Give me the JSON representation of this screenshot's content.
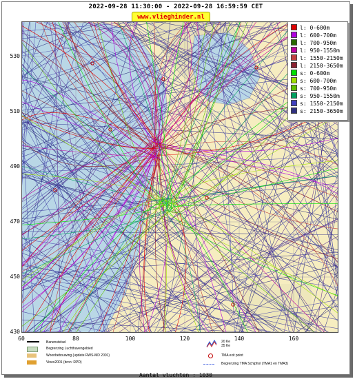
{
  "title": "2022-09-28 11:30:00 - 2022-09-28 16:59:59 CET",
  "site": "www.vlieghinder.nl",
  "axes": {
    "y_ticks": [
      "530",
      "510",
      "490",
      "470",
      "450",
      "430"
    ],
    "x_ticks": [
      "60",
      "80",
      "100",
      "120",
      "140",
      "160"
    ]
  },
  "legend": [
    {
      "label": "l: 0-600m",
      "color": "#e00000"
    },
    {
      "label": "l: 600-700m",
      "color": "#b000e0"
    },
    {
      "label": "l: 700-950m",
      "color": "#2a6a00"
    },
    {
      "label": "l: 950-1550m",
      "color": "#c000a0"
    },
    {
      "label": "l: 1550-2150m",
      "color": "#c04040"
    },
    {
      "label": "l: 2150-3650m",
      "color": "#8b2030"
    },
    {
      "label": "s: 0-600m",
      "color": "#00e000"
    },
    {
      "label": "s: 600-700m",
      "color": "#a0e000"
    },
    {
      "label": "s: 700-950m",
      "color": "#60c000"
    },
    {
      "label": "s: 950-1550m",
      "color": "#00a060"
    },
    {
      "label": "s: 1550-2150m",
      "color": "#4040c0"
    },
    {
      "label": "s: 2150-3650m",
      "color": "#303080"
    }
  ],
  "key": {
    "runway": "Banenstelsel",
    "airport_boundary": "Begrenzing Luchthavengebied",
    "housing": "Woonbebouwing (update RWS-MD 2001)",
    "vinex": "Vinex2001 (bron: RPD)",
    "noise": "20 Ke\n35 Ke",
    "tma_exit": "TMA exit point",
    "tma_boundary": "Begrenzing TMA Schiphol  (TMA1 en TMA3)"
  },
  "count_label": "Aantal vluchten : 1030",
  "colors": {
    "sea": "#b9d7e6",
    "land": "#f6edc0",
    "track_main": "#2d2d8c",
    "track_red": "#c03030"
  }
}
